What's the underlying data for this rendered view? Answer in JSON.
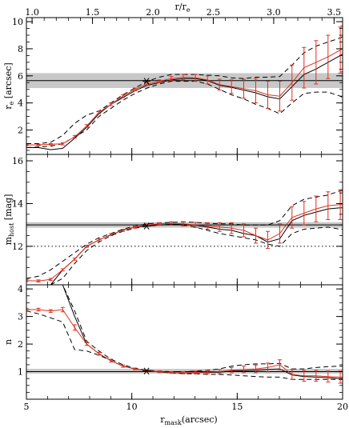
{
  "chart_data": {
    "type": "line",
    "x_bottom": {
      "label_main": "r",
      "label_sub": "mask",
      "label_tail": "(arcsec)",
      "range": [
        5,
        20
      ],
      "ticks": [
        5,
        10,
        15,
        20
      ]
    },
    "x_top": {
      "label": "r/r",
      "label_sub": "e",
      "ticks": [
        1.0,
        1.5,
        2.0,
        2.5,
        3.0,
        3.5
      ],
      "rmask_per_unit": 5.73,
      "rmask_offset": -0.46
    },
    "x": [
      5.0,
      5.57,
      6.15,
      6.72,
      7.29,
      7.86,
      8.44,
      9.01,
      9.58,
      10.15,
      10.73,
      11.3,
      11.87,
      12.44,
      13.02,
      13.59,
      14.16,
      14.73,
      15.31,
      15.88,
      16.45,
      17.02,
      17.6,
      18.17,
      18.74,
      19.31,
      19.89,
      20.0
    ],
    "marker_x": 10.7,
    "panels": [
      {
        "name": "re",
        "ylabel_main": "r",
        "ylabel_sub": "e",
        "ylabel_tail": " [arcsec]",
        "ylim": [
          0.2,
          10.3
        ],
        "yticks": [
          2,
          4,
          6,
          8,
          10
        ],
        "band": [
          5.1,
          6.2
        ],
        "hline": 5.65,
        "hline_style": "solid",
        "marker_y": 5.6,
        "series": [
          {
            "name": "",
            "color": "#e0301e",
            "style": "solid",
            "errorbars": true,
            "values": [
              0.9,
              0.9,
              0.95,
              0.98,
              1.5,
              2.3,
              3.3,
              3.9,
              4.5,
              5.0,
              5.4,
              5.6,
              5.8,
              5.9,
              5.85,
              5.7,
              5.35,
              5.2,
              5.05,
              4.9,
              4.6,
              4.5,
              5.5,
              6.6,
              7.0,
              7.4,
              7.9,
              8.0
            ],
            "err": [
              0.05,
              0.05,
              0.05,
              0.08,
              0.1,
              0.1,
              0.1,
              0.1,
              0.1,
              0.1,
              0.1,
              0.1,
              0.15,
              0.2,
              0.25,
              0.3,
              0.4,
              0.5,
              0.7,
              0.9,
              1.0,
              1.1,
              1.3,
              1.5,
              1.6,
              1.6,
              1.7,
              1.7
            ]
          },
          {
            "name": "",
            "color": "#000000",
            "style": "solid",
            "values": [
              0.7,
              0.7,
              0.55,
              0.65,
              1.4,
              2.2,
              3.2,
              3.9,
              4.4,
              4.9,
              5.3,
              5.5,
              5.7,
              5.8,
              5.8,
              5.65,
              5.3,
              5.15,
              4.95,
              4.75,
              4.45,
              4.3,
              5.2,
              6.1,
              6.5,
              7.0,
              7.5,
              7.6
            ]
          },
          {
            "name": "",
            "color": "#000000",
            "style": "dashed",
            "values": [
              1.0,
              1.0,
              1.1,
              1.6,
              2.5,
              3.1,
              3.4,
              4.0,
              4.6,
              5.1,
              5.6,
              5.9,
              6.1,
              6.1,
              6.1,
              6.05,
              6.0,
              5.85,
              5.8,
              5.9,
              5.9,
              5.95,
              6.8,
              7.7,
              8.2,
              8.5,
              8.8,
              8.9
            ]
          },
          {
            "name": "",
            "color": "#000000",
            "style": "dashed",
            "values": [
              0.7,
              0.75,
              0.8,
              1.0,
              1.5,
              2.0,
              3.0,
              3.6,
              4.2,
              4.7,
              5.1,
              5.4,
              5.6,
              5.6,
              5.6,
              5.4,
              5.0,
              4.6,
              4.3,
              3.9,
              3.6,
              3.2,
              4.0,
              4.7,
              4.8,
              4.8,
              4.5,
              4.4
            ]
          }
        ]
      },
      {
        "name": "mhost",
        "ylabel_main": "m",
        "ylabel_sub": "host",
        "ylabel_tail": " [mag]",
        "ylim": [
          10.2,
          16.3
        ],
        "yticks": [
          12,
          14,
          16
        ],
        "band": [
          12.87,
          13.13
        ],
        "hline": 13.0,
        "hline_style": "solid",
        "hline2": 12.0,
        "hline2_style": "dotted",
        "marker_y": 12.95,
        "series": [
          {
            "name": "",
            "color": "#e0301e",
            "style": "solid",
            "errorbars": true,
            "values": [
              10.4,
              10.38,
              10.45,
              10.9,
              11.4,
              12.0,
              12.3,
              12.55,
              12.75,
              12.9,
              13.0,
              13.05,
              13.07,
              13.05,
              13.0,
              12.95,
              12.9,
              12.85,
              12.75,
              12.5,
              12.3,
              12.6,
              13.35,
              13.55,
              13.75,
              13.9,
              13.95,
              13.95
            ],
            "err": [
              0.05,
              0.05,
              0.05,
              0.05,
              0.05,
              0.05,
              0.05,
              0.05,
              0.05,
              0.05,
              0.05,
              0.05,
              0.08,
              0.1,
              0.12,
              0.15,
              0.2,
              0.25,
              0.3,
              0.35,
              0.4,
              0.45,
              0.5,
              0.55,
              0.6,
              0.65,
              0.7,
              0.7
            ]
          },
          {
            "name": "",
            "color": "#000000",
            "style": "solid",
            "values": [
              10.2,
              10.2,
              10.2,
              10.9,
              11.4,
              12.0,
              12.3,
              12.55,
              12.75,
              12.9,
              12.95,
              13.0,
              13.03,
              13.02,
              12.98,
              12.9,
              12.8,
              12.75,
              12.6,
              12.5,
              12.2,
              12.35,
              13.2,
              13.45,
              13.6,
              13.75,
              13.8,
              13.8
            ]
          },
          {
            "name": "",
            "color": "#000000",
            "style": "dashed",
            "values": [
              10.5,
              10.6,
              10.9,
              11.3,
              11.7,
              12.1,
              12.4,
              12.6,
              12.8,
              12.95,
              13.05,
              13.1,
              13.12,
              13.15,
              13.12,
              13.08,
              13.05,
              13.05,
              13.0,
              13.0,
              13.0,
              13.2,
              13.9,
              14.2,
              14.3,
              14.4,
              14.6,
              14.6
            ]
          },
          {
            "name": "",
            "color": "#000000",
            "style": "dashed",
            "values": [
              10.2,
              10.2,
              10.2,
              10.5,
              11.2,
              11.8,
              12.2,
              12.5,
              12.7,
              12.85,
              12.95,
              13.0,
              13.02,
              13.0,
              12.9,
              12.75,
              12.6,
              12.5,
              12.4,
              12.3,
              12.1,
              12.0,
              12.6,
              12.8,
              12.85,
              12.9,
              12.8,
              12.8
            ]
          }
        ]
      },
      {
        "name": "n",
        "ylabel_main": "n",
        "ylabel_sub": "",
        "ylabel_tail": "",
        "ylim": [
          0.0,
          4.15
        ],
        "yticks": [
          1,
          2,
          3,
          4
        ],
        "band": [
          0.93,
          1.1
        ],
        "hline": 1.0,
        "hline_style": "solid",
        "marker_y": 1.02,
        "series": [
          {
            "name": "",
            "color": "#e0301e",
            "style": "solid",
            "errorbars": true,
            "values": [
              3.25,
              3.25,
              3.2,
              3.25,
              2.6,
              2.0,
              1.65,
              1.4,
              1.2,
              1.1,
              1.03,
              1.0,
              0.97,
              0.96,
              0.97,
              0.98,
              1.0,
              1.05,
              1.08,
              1.1,
              1.15,
              1.25,
              0.9,
              0.85,
              0.85,
              0.82,
              0.8,
              0.8
            ],
            "err": [
              0.05,
              0.05,
              0.05,
              0.08,
              0.1,
              0.05,
              0.05,
              0.05,
              0.04,
              0.03,
              0.03,
              0.03,
              0.03,
              0.04,
              0.05,
              0.06,
              0.08,
              0.1,
              0.12,
              0.14,
              0.16,
              0.18,
              0.18,
              0.2,
              0.2,
              0.2,
              0.22,
              0.22
            ]
          },
          {
            "name": "",
            "color": "#000000",
            "style": "solid",
            "values": [
              4.15,
              4.15,
              4.15,
              4.15,
              3.0,
              2.0,
              1.65,
              1.4,
              1.2,
              1.1,
              1.03,
              0.99,
              0.96,
              0.95,
              0.96,
              0.97,
              0.98,
              1.02,
              1.03,
              1.05,
              1.08,
              1.1,
              0.88,
              0.82,
              0.8,
              0.78,
              0.75,
              0.75
            ]
          },
          {
            "name": "",
            "color": "#000000",
            "style": "dashed",
            "values": [
              4.15,
              4.15,
              4.15,
              4.15,
              3.2,
              2.1,
              1.75,
              1.45,
              1.25,
              1.12,
              1.05,
              1.02,
              1.0,
              1.0,
              1.02,
              1.05,
              1.1,
              1.2,
              1.25,
              1.28,
              1.28,
              1.3,
              1.1,
              1.1,
              1.15,
              1.18,
              1.2,
              1.2
            ]
          },
          {
            "name": "",
            "color": "#000000",
            "style": "dashed",
            "values": [
              3.2,
              3.1,
              2.95,
              2.8,
              1.8,
              1.75,
              1.6,
              1.4,
              1.2,
              1.1,
              1.03,
              0.99,
              0.95,
              0.93,
              0.92,
              0.9,
              0.9,
              0.88,
              0.85,
              0.82,
              0.8,
              0.8,
              0.72,
              0.72,
              0.72,
              0.72,
              0.72,
              0.72
            ]
          }
        ]
      }
    ]
  }
}
